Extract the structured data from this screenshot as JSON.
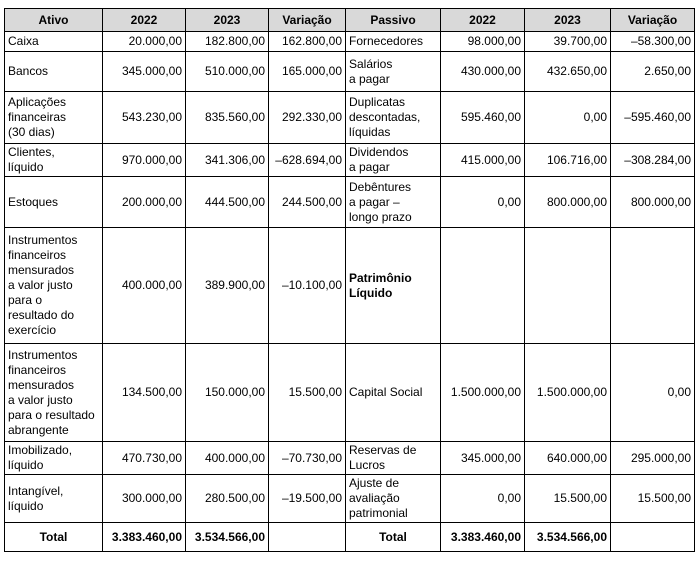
{
  "table": {
    "columns": [
      "Ativo",
      "2022",
      "2023",
      "Variação",
      "Passivo",
      "2022",
      "2023",
      "Variação"
    ],
    "rows": [
      [
        "Caixa",
        "20.000,00",
        "182.800,00",
        "162.800,00",
        "Fornecedores",
        "98.000,00",
        "39.700,00",
        "–58.300,00"
      ],
      [
        "Bancos",
        "345.000,00",
        "510.000,00",
        "165.000,00",
        "Salários\na pagar",
        "430.000,00",
        "432.650,00",
        "2.650,00"
      ],
      [
        "Aplicações\nfinanceiras\n(30 dias)",
        "543.230,00",
        "835.560,00",
        "292.330,00",
        "Duplicatas\ndescontadas,\nlíquidas",
        "595.460,00",
        "0,00",
        "–595.460,00"
      ],
      [
        "Clientes,\nlíquido",
        "970.000,00",
        "341.306,00",
        "–628.694,00",
        "Dividendos\na pagar",
        "415.000,00",
        "106.716,00",
        "–308.284,00"
      ],
      [
        "Estoques",
        "200.000,00",
        "444.500,00",
        "244.500,00",
        "Debêntures\na pagar –\nlongo prazo",
        "0,00",
        "800.000,00",
        "800.000,00"
      ],
      [
        "Instrumentos\nfinanceiros\nmensurados\na valor justo\npara o\nresultado do\nexercício",
        "400.000,00",
        "389.900,00",
        "–10.100,00",
        "Patrimônio\nLíquido"
      ],
      [
        "Instrumentos\nfinanceiros\nmensurados\na valor justo\npara o resultado\nabrangente",
        "134.500,00",
        "150.000,00",
        "15.500,00",
        "Capital Social",
        "1.500.000,00",
        "1.500.000,00",
        "0,00"
      ],
      [
        "Imobilizado,\nlíquido",
        "470.730,00",
        "400.000,00",
        "–70.730,00",
        "Reservas de\nLucros",
        "345.000,00",
        "640.000,00",
        "295.000,00"
      ],
      [
        "Intangível,\nlíquido",
        "300.000,00",
        "280.500,00",
        "–19.500,00",
        "Ajuste de\navaliação\npatrimonial",
        "0,00",
        "15.500,00",
        "15.500,00"
      ]
    ],
    "total": {
      "ativo": [
        "Total",
        "3.383.460,00",
        "3.534.566,00"
      ],
      "passivo": [
        "Total",
        "3.383.460,00",
        "3.534.566,00"
      ]
    }
  }
}
